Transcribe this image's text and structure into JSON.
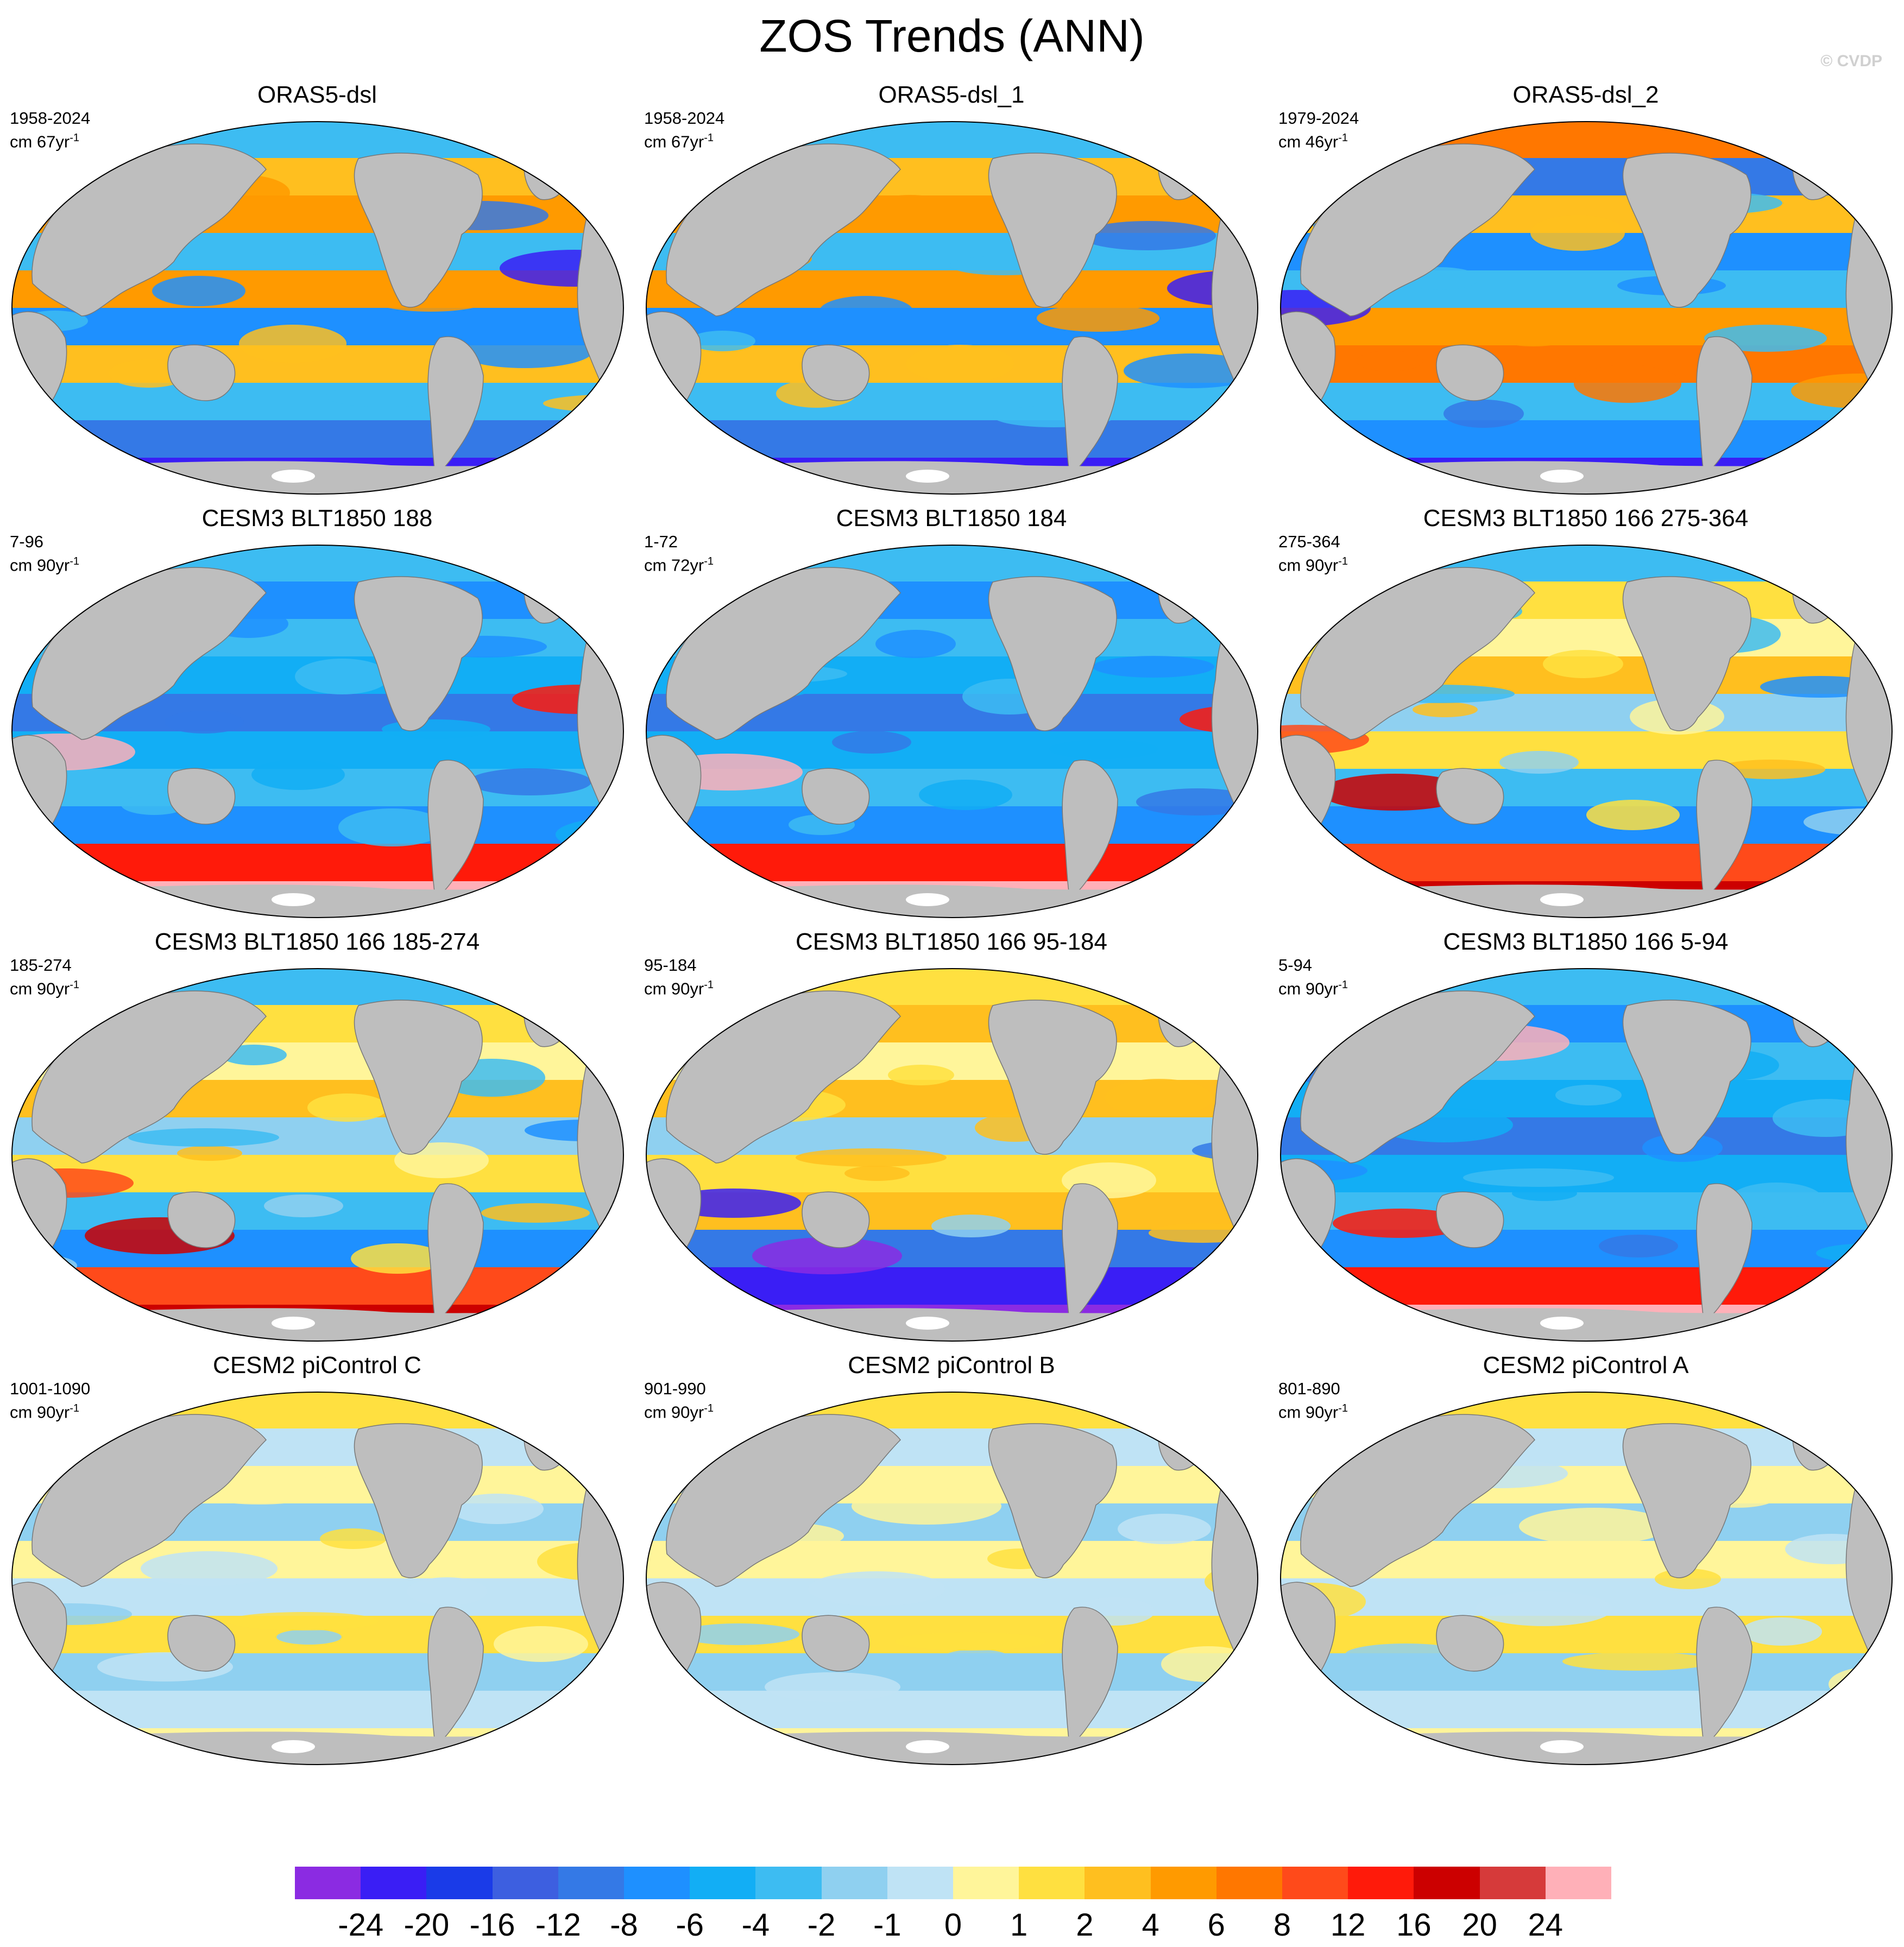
{
  "title": "ZOS Trends (ANN)",
  "watermark": "© CVDP",
  "panels": [
    {
      "title": "ORAS5-dsl",
      "period": "1958-2024",
      "unit": "cm 67yr",
      "unit_exp": "-1",
      "pattern": "obsA"
    },
    {
      "title": "ORAS5-dsl_1",
      "period": "1958-2024",
      "unit": "cm 67yr",
      "unit_exp": "-1",
      "pattern": "obsA"
    },
    {
      "title": "ORAS5-dsl_2",
      "period": "1979-2024",
      "unit": "cm 46yr",
      "unit_exp": "-1",
      "pattern": "obsB"
    },
    {
      "title": "CESM3 BLT1850 188",
      "period": "7-96",
      "unit": "cm 90yr",
      "unit_exp": "-1",
      "pattern": "blueRed"
    },
    {
      "title": "CESM3 BLT1850 184",
      "period": "1-72",
      "unit": "cm 72yr",
      "unit_exp": "-1",
      "pattern": "blueRed"
    },
    {
      "title": "CESM3 BLT1850 166 275-364",
      "period": "275-364",
      "unit": "cm 90yr",
      "unit_exp": "-1",
      "pattern": "mixedWarm"
    },
    {
      "title": "CESM3 BLT1850 166 185-274",
      "period": "185-274",
      "unit": "cm 90yr",
      "unit_exp": "-1",
      "pattern": "mixedWarm"
    },
    {
      "title": "CESM3 BLT1850 166 95-184",
      "period": "95-184",
      "unit": "cm 90yr",
      "unit_exp": "-1",
      "pattern": "warmBlueSouth"
    },
    {
      "title": "CESM3 BLT1850 166 5-94",
      "period": "5-94",
      "unit": "cm 90yr",
      "unit_exp": "-1",
      "pattern": "blueRed"
    },
    {
      "title": "CESM2 piControl C",
      "period": "1001-1090",
      "unit": "cm 90yr",
      "unit_exp": "-1",
      "pattern": "weak"
    },
    {
      "title": "CESM2 piControl B",
      "period": "901-990",
      "unit": "cm 90yr",
      "unit_exp": "-1",
      "pattern": "weak"
    },
    {
      "title": "CESM2 piControl A",
      "period": "801-890",
      "unit": "cm 90yr",
      "unit_exp": "-1",
      "pattern": "weak"
    }
  ],
  "colorbar": {
    "labels": [
      "-24",
      "-20",
      "-16",
      "-12",
      "-8",
      "-6",
      "-4",
      "-2",
      "-1",
      "0",
      "1",
      "2",
      "4",
      "6",
      "8",
      "12",
      "16",
      "20",
      "24"
    ],
    "colors": [
      "#8b2be2",
      "#3a1ef5",
      "#1a3be8",
      "#3d5fe0",
      "#3479e6",
      "#1e90ff",
      "#12aef5",
      "#3dbcf2",
      "#8fd0f0",
      "#bfe3f5",
      "#fff59a",
      "#ffe040",
      "#ffbf1f",
      "#ff9a00",
      "#ff7700",
      "#ff4a1a",
      "#ff1a0a",
      "#cc0000",
      "#d63a3a",
      "#ffb0b8"
    ]
  },
  "colors": {
    "land": "#bebebe",
    "ocean_outline": "#000000",
    "antarctic": "#ffffff"
  }
}
